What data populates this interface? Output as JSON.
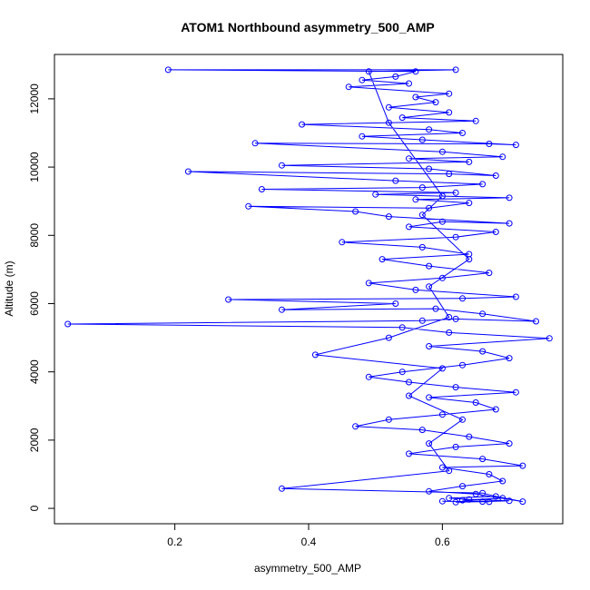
{
  "chart_data": {
    "type": "line",
    "title": "ATOM1 Northbound asymmetry_500_AMP",
    "xlabel": "asymmetry_500_AMP",
    "ylabel": "Altitude (m)",
    "xlim": [
      0.02,
      0.78
    ],
    "ylim": [
      -450,
      13300
    ],
    "x_ticks": [
      "0.2",
      "0.4",
      "0.6"
    ],
    "y_ticks": [
      "0",
      "2000",
      "4000",
      "6000",
      "8000",
      "10000",
      "12000"
    ],
    "grid": false,
    "legend": "none",
    "series_color": "#0000ff",
    "points": [
      [
        0.62,
        180
      ],
      [
        0.66,
        200
      ],
      [
        0.7,
        220
      ],
      [
        0.64,
        260
      ],
      [
        0.61,
        300
      ],
      [
        0.68,
        350
      ],
      [
        0.72,
        200
      ],
      [
        0.65,
        420
      ],
      [
        0.58,
        500
      ],
      [
        0.63,
        650
      ],
      [
        0.69,
        800
      ],
      [
        0.67,
        1000
      ],
      [
        0.6,
        1200
      ],
      [
        0.72,
        1250
      ],
      [
        0.66,
        1450
      ],
      [
        0.55,
        1600
      ],
      [
        0.62,
        1800
      ],
      [
        0.7,
        1900
      ],
      [
        0.64,
        2100
      ],
      [
        0.57,
        2300
      ],
      [
        0.47,
        2400
      ],
      [
        0.52,
        2600
      ],
      [
        0.6,
        2750
      ],
      [
        0.68,
        2900
      ],
      [
        0.65,
        3100
      ],
      [
        0.58,
        3250
      ],
      [
        0.71,
        3400
      ],
      [
        0.62,
        3550
      ],
      [
        0.55,
        3700
      ],
      [
        0.49,
        3850
      ],
      [
        0.54,
        4000
      ],
      [
        0.63,
        4200
      ],
      [
        0.7,
        4400
      ],
      [
        0.66,
        4600
      ],
      [
        0.58,
        4750
      ],
      [
        0.76,
        4980
      ],
      [
        0.61,
        5150
      ],
      [
        0.54,
        5300
      ],
      [
        0.04,
        5400
      ],
      [
        0.57,
        5500
      ],
      [
        0.62,
        5550
      ],
      [
        0.74,
        5480
      ],
      [
        0.66,
        5700
      ],
      [
        0.59,
        5850
      ],
      [
        0.36,
        5820
      ],
      [
        0.53,
        6000
      ],
      [
        0.28,
        6120
      ],
      [
        0.63,
        6150
      ],
      [
        0.71,
        6200
      ],
      [
        0.56,
        6400
      ],
      [
        0.49,
        6600
      ],
      [
        0.6,
        6750
      ],
      [
        0.67,
        6900
      ],
      [
        0.58,
        7100
      ],
      [
        0.51,
        7300
      ],
      [
        0.64,
        7450
      ],
      [
        0.57,
        7650
      ],
      [
        0.45,
        7800
      ],
      [
        0.62,
        7950
      ],
      [
        0.68,
        8100
      ],
      [
        0.55,
        8250
      ],
      [
        0.6,
        8400
      ],
      [
        0.7,
        8350
      ],
      [
        0.52,
        8550
      ],
      [
        0.47,
        8700
      ],
      [
        0.31,
        8850
      ],
      [
        0.58,
        8800
      ],
      [
        0.64,
        8950
      ],
      [
        0.56,
        9050
      ],
      [
        0.7,
        9100
      ],
      [
        0.5,
        9200
      ],
      [
        0.62,
        9250
      ],
      [
        0.33,
        9350
      ],
      [
        0.57,
        9400
      ],
      [
        0.66,
        9500
      ],
      [
        0.53,
        9600
      ],
      [
        0.22,
        9870
      ],
      [
        0.61,
        9800
      ],
      [
        0.68,
        9750
      ],
      [
        0.58,
        9950
      ],
      [
        0.36,
        10050
      ],
      [
        0.64,
        10150
      ],
      [
        0.55,
        10250
      ],
      [
        0.69,
        10300
      ],
      [
        0.6,
        10450
      ],
      [
        0.32,
        10700
      ],
      [
        0.67,
        10680
      ],
      [
        0.71,
        10650
      ],
      [
        0.57,
        10800
      ],
      [
        0.48,
        10900
      ],
      [
        0.63,
        11000
      ],
      [
        0.58,
        11100
      ],
      [
        0.39,
        11250
      ],
      [
        0.65,
        11350
      ],
      [
        0.54,
        11450
      ],
      [
        0.61,
        11600
      ],
      [
        0.52,
        11750
      ],
      [
        0.59,
        11900
      ],
      [
        0.56,
        12050
      ],
      [
        0.61,
        12150
      ],
      [
        0.46,
        12350
      ],
      [
        0.55,
        12450
      ],
      [
        0.48,
        12550
      ],
      [
        0.53,
        12650
      ],
      [
        0.56,
        12800
      ],
      [
        0.19,
        12850
      ],
      [
        0.62,
        12850
      ],
      [
        0.49,
        12800
      ],
      [
        0.52,
        11300
      ],
      [
        0.6,
        9150
      ],
      [
        0.57,
        8600
      ],
      [
        0.64,
        7300
      ],
      [
        0.58,
        6500
      ],
      [
        0.61,
        5600
      ],
      [
        0.52,
        5000
      ],
      [
        0.41,
        4500
      ],
      [
        0.6,
        4100
      ],
      [
        0.55,
        3300
      ],
      [
        0.63,
        2600
      ],
      [
        0.58,
        1900
      ],
      [
        0.61,
        1100
      ],
      [
        0.36,
        580
      ],
      [
        0.66,
        450
      ],
      [
        0.69,
        300
      ],
      [
        0.63,
        240
      ],
      [
        0.67,
        190
      ],
      [
        0.6,
        210
      ]
    ]
  }
}
